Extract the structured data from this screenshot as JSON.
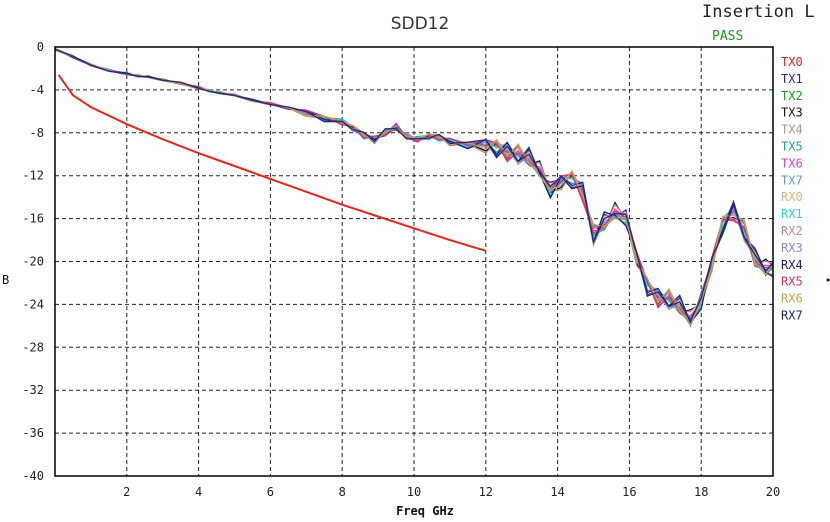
{
  "chart_data": {
    "type": "line",
    "title": "SDD12",
    "corner_title": "Insertion L",
    "status": "PASS",
    "xlabel": "Freq GHz",
    "ylabel": "B",
    "xlim": [
      0,
      20
    ],
    "ylim": [
      -40,
      0
    ],
    "x_ticks": [
      2,
      4,
      6,
      8,
      10,
      12,
      14,
      16,
      18,
      20
    ],
    "y_ticks": [
      0,
      -4,
      -8,
      -12,
      -16,
      -20,
      -24,
      -28,
      -32,
      -36,
      -40
    ],
    "grid": true,
    "legend_position": "right",
    "limit_line": {
      "color": "#e8241c",
      "x": [
        0.1,
        0.5,
        1,
        2,
        3,
        4,
        5,
        6,
        7,
        8,
        9,
        10,
        11,
        12
      ],
      "y": [
        -2.6,
        -4.5,
        -5.6,
        -7.2,
        -8.6,
        -9.9,
        -11.1,
        -12.3,
        -13.5,
        -14.7,
        -15.8,
        -16.9,
        -18.0,
        -19.0
      ]
    },
    "series_base": {
      "x": [
        0,
        0.5,
        1,
        1.5,
        2,
        2.3,
        2.6,
        3,
        3.5,
        4,
        4.3,
        4.6,
        5,
        5.5,
        6,
        6.5,
        7,
        7.5,
        8,
        8.3,
        8.6,
        8.9,
        9.2,
        9.5,
        9.8,
        10.1,
        10.4,
        10.7,
        11,
        11.5,
        12,
        12.3,
        12.6,
        12.9,
        13.2,
        13.5,
        13.8,
        14.1,
        14.4,
        14.7,
        15,
        15.3,
        15.6,
        15.9,
        16.2,
        16.5,
        16.8,
        17.1,
        17.4,
        17.7,
        18.0,
        18.3,
        18.6,
        18.9,
        19.2,
        19.5,
        19.8,
        20
      ],
      "y": [
        -0.2,
        -0.9,
        -1.7,
        -2.2,
        -2.5,
        -2.7,
        -2.8,
        -3.1,
        -3.4,
        -3.8,
        -4.1,
        -4.3,
        -4.5,
        -5.0,
        -5.3,
        -5.7,
        -6.1,
        -6.6,
        -7.0,
        -7.5,
        -8.2,
        -8.6,
        -8.0,
        -7.5,
        -8.4,
        -8.6,
        -8.3,
        -8.4,
        -8.8,
        -9.1,
        -9.0,
        -9.3,
        -9.7,
        -10.1,
        -10.4,
        -11.6,
        -13.4,
        -12.4,
        -12.2,
        -13.4,
        -17.6,
        -16.4,
        -15.5,
        -16.0,
        -19.5,
        -22.2,
        -23.3,
        -23.6,
        -24.2,
        -25.5,
        -23.8,
        -20.0,
        -16.4,
        -15.2,
        -17.2,
        -19.8,
        -20.8,
        -20.5
      ]
    },
    "series": [
      {
        "name": "TX0",
        "color": "#e8241c"
      },
      {
        "name": "TX1",
        "color": "#1f23c8"
      },
      {
        "name": "TX2",
        "color": "#1a9a2a"
      },
      {
        "name": "TX3",
        "color": "#111111"
      },
      {
        "name": "TX4",
        "color": "#9c9c9c"
      },
      {
        "name": "TX5",
        "color": "#18a3a3"
      },
      {
        "name": "TX6",
        "color": "#e23fbf"
      },
      {
        "name": "TX7",
        "color": "#5d98d6"
      },
      {
        "name": "RX0",
        "color": "#e8b08a"
      },
      {
        "name": "RX1",
        "color": "#22d5ea"
      },
      {
        "name": "RX2",
        "color": "#c48a8a"
      },
      {
        "name": "RX3",
        "color": "#8a83d6"
      },
      {
        "name": "RX4",
        "color": "#1a1f8c"
      },
      {
        "name": "RX5",
        "color": "#e03060"
      },
      {
        "name": "RX6",
        "color": "#c4a24c"
      },
      {
        "name": "RX7",
        "color": "#1c2a7c"
      }
    ]
  }
}
